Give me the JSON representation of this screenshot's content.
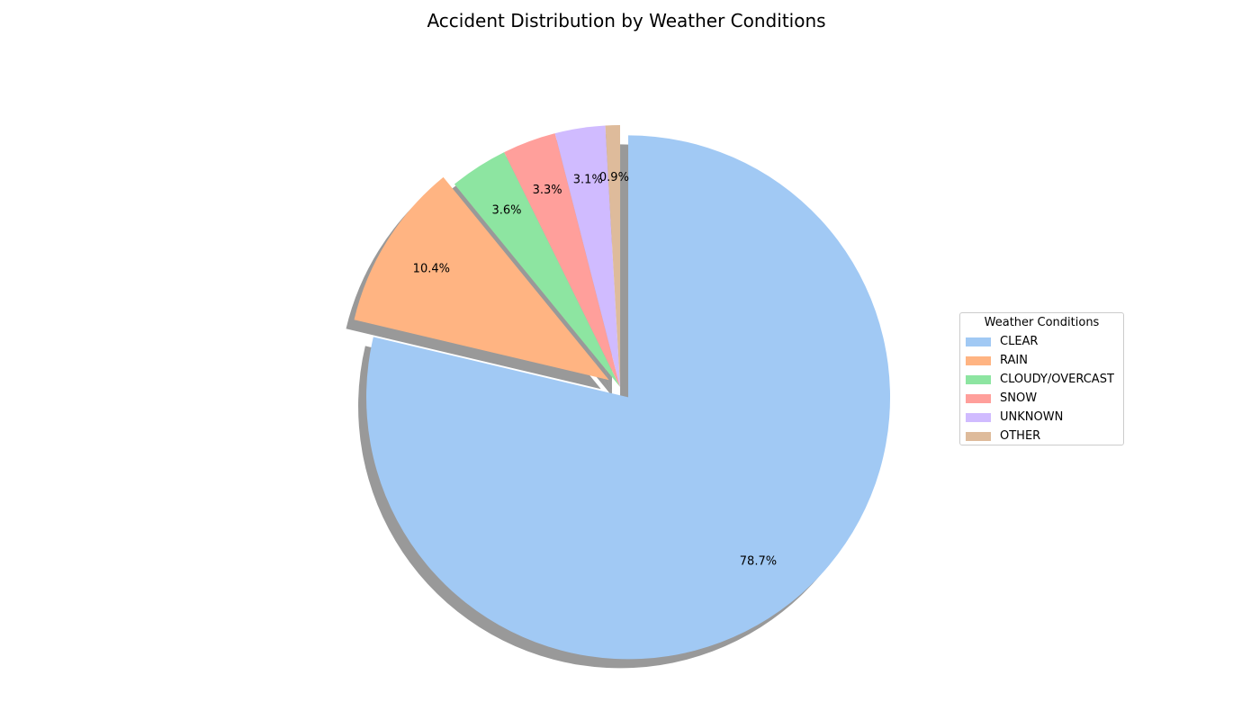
{
  "chart_data": {
    "type": "pie",
    "title": "Accident Distribution by Weather Conditions",
    "legend_title": "Weather Conditions",
    "legend_position": "center-right",
    "start_angle_deg": 90,
    "direction": "clockwise",
    "shadow": true,
    "slices": [
      {
        "label": "CLEAR",
        "value": 78.7,
        "display": "78.7%",
        "color": "#a1c9f4",
        "explode": 0.05
      },
      {
        "label": "RAIN",
        "value": 10.4,
        "display": "10.4%",
        "color": "#ffb482",
        "explode": 0.05
      },
      {
        "label": "CLOUDY/OVERCAST",
        "value": 3.6,
        "display": "3.6%",
        "color": "#8de5a1",
        "explode": 0
      },
      {
        "label": "SNOW",
        "value": 3.3,
        "display": "3.3%",
        "color": "#ff9f9b",
        "explode": 0
      },
      {
        "label": "UNKNOWN",
        "value": 3.1,
        "display": "3.1%",
        "color": "#d0bbff",
        "explode": 0
      },
      {
        "label": "OTHER",
        "value": 0.9,
        "display": "0.9%",
        "color": "#debb9b",
        "explode": 0
      }
    ]
  }
}
